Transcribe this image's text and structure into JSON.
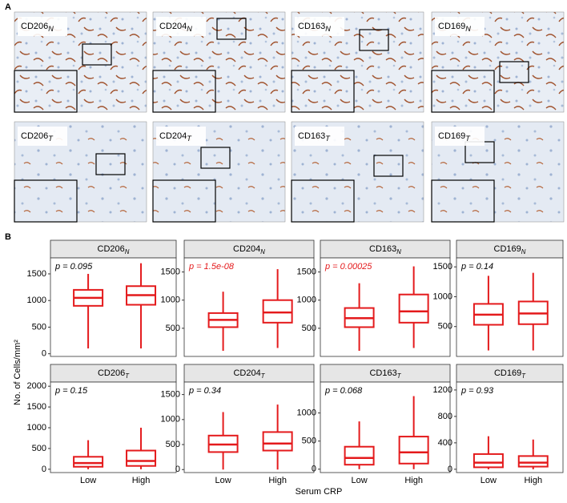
{
  "panel_a": {
    "label": "A",
    "tiles": [
      {
        "name": "CD206",
        "sub": "N"
      },
      {
        "name": "CD204",
        "sub": "N"
      },
      {
        "name": "CD163",
        "sub": "N"
      },
      {
        "name": "CD169",
        "sub": "N"
      },
      {
        "name": "CD206",
        "sub": "T"
      },
      {
        "name": "CD204",
        "sub": "T"
      },
      {
        "name": "CD163",
        "sub": "T"
      },
      {
        "name": "CD169",
        "sub": "T"
      }
    ]
  },
  "panel_b": {
    "label": "B",
    "y_label": "No. of Cells/mm²",
    "x_label": "Serum CRP"
  },
  "chart_data": [
    {
      "type": "box",
      "title": {
        "name": "CD206",
        "sub": "N"
      },
      "annotation": "p = 0.095",
      "annotation_color": "#000000",
      "color": "#e41a1c",
      "categories": [
        "Low",
        "High"
      ],
      "low": [
        100,
        100
      ],
      "q1": [
        900,
        920
      ],
      "median": [
        1050,
        1100
      ],
      "q3": [
        1200,
        1270
      ],
      "high": [
        1500,
        1700
      ],
      "ylim": [
        -50,
        1800
      ],
      "yticks": [
        0,
        500,
        1000,
        1500
      ]
    },
    {
      "type": "box",
      "title": {
        "name": "CD204",
        "sub": "N"
      },
      "annotation": "p = 1.5e-08",
      "annotation_color": "#e41a1c",
      "color": "#e41a1c",
      "categories": [
        "Low",
        "High"
      ],
      "low": [
        100,
        150
      ],
      "q1": [
        520,
        600
      ],
      "median": [
        650,
        780
      ],
      "q3": [
        770,
        1000
      ],
      "high": [
        1150,
        1550
      ],
      "ylim": [
        0,
        1750
      ],
      "yticks": [
        500,
        1000,
        1500
      ]
    },
    {
      "type": "box",
      "title": {
        "name": "CD163",
        "sub": "N"
      },
      "annotation": "p = 0.00025",
      "annotation_color": "#e41a1c",
      "color": "#e41a1c",
      "categories": [
        "Low",
        "High"
      ],
      "low": [
        100,
        150
      ],
      "q1": [
        520,
        600
      ],
      "median": [
        680,
        800
      ],
      "q3": [
        860,
        1100
      ],
      "high": [
        1300,
        1600
      ],
      "ylim": [
        0,
        1750
      ],
      "yticks": [
        500,
        1000,
        1500
      ]
    },
    {
      "type": "box",
      "title": {
        "name": "CD169",
        "sub": "N"
      },
      "annotation": "p = 0.14",
      "annotation_color": "#000000",
      "color": "#e41a1c",
      "categories": [
        "Low",
        "High"
      ],
      "low": [
        100,
        100
      ],
      "q1": [
        530,
        540
      ],
      "median": [
        700,
        720
      ],
      "q3": [
        880,
        920
      ],
      "high": [
        1350,
        1400
      ],
      "ylim": [
        0,
        1650
      ],
      "yticks": [
        500,
        1000,
        1500
      ]
    },
    {
      "type": "box",
      "title": {
        "name": "CD206",
        "sub": "T"
      },
      "annotation": "p = 0.15",
      "annotation_color": "#000000",
      "color": "#e41a1c",
      "categories": [
        "Low",
        "High"
      ],
      "low": [
        0,
        0
      ],
      "q1": [
        60,
        80
      ],
      "median": [
        150,
        200
      ],
      "q3": [
        300,
        450
      ],
      "high": [
        700,
        1000
      ],
      "ylim": [
        -80,
        2100
      ],
      "yticks": [
        0,
        500,
        1000,
        1500,
        2000
      ]
    },
    {
      "type": "box",
      "title": {
        "name": "CD204",
        "sub": "T"
      },
      "annotation": "p = 0.34",
      "annotation_color": "#000000",
      "color": "#e41a1c",
      "categories": [
        "Low",
        "High"
      ],
      "low": [
        0,
        0
      ],
      "q1": [
        350,
        380
      ],
      "median": [
        500,
        520
      ],
      "q3": [
        680,
        750
      ],
      "high": [
        1150,
        1300
      ],
      "ylim": [
        -60,
        1750
      ],
      "yticks": [
        0,
        500,
        1000,
        1500
      ]
    },
    {
      "type": "box",
      "title": {
        "name": "CD163",
        "sub": "T"
      },
      "annotation": "p = 0.068",
      "annotation_color": "#000000",
      "color": "#e41a1c",
      "categories": [
        "Low",
        "High"
      ],
      "low": [
        0,
        0
      ],
      "q1": [
        80,
        100
      ],
      "median": [
        200,
        300
      ],
      "q3": [
        400,
        580
      ],
      "high": [
        850,
        1300
      ],
      "ylim": [
        -60,
        1550
      ],
      "yticks": [
        0,
        500,
        1000
      ]
    },
    {
      "type": "box",
      "title": {
        "name": "CD169",
        "sub": "T"
      },
      "annotation": "p = 0.93",
      "annotation_color": "#000000",
      "color": "#e41a1c",
      "categories": [
        "Low",
        "High"
      ],
      "low": [
        0,
        0
      ],
      "q1": [
        30,
        40
      ],
      "median": [
        100,
        100
      ],
      "q3": [
        230,
        200
      ],
      "high": [
        500,
        450
      ],
      "ylim": [
        -50,
        1320
      ],
      "yticks": [
        0,
        400,
        800,
        1200
      ]
    }
  ]
}
